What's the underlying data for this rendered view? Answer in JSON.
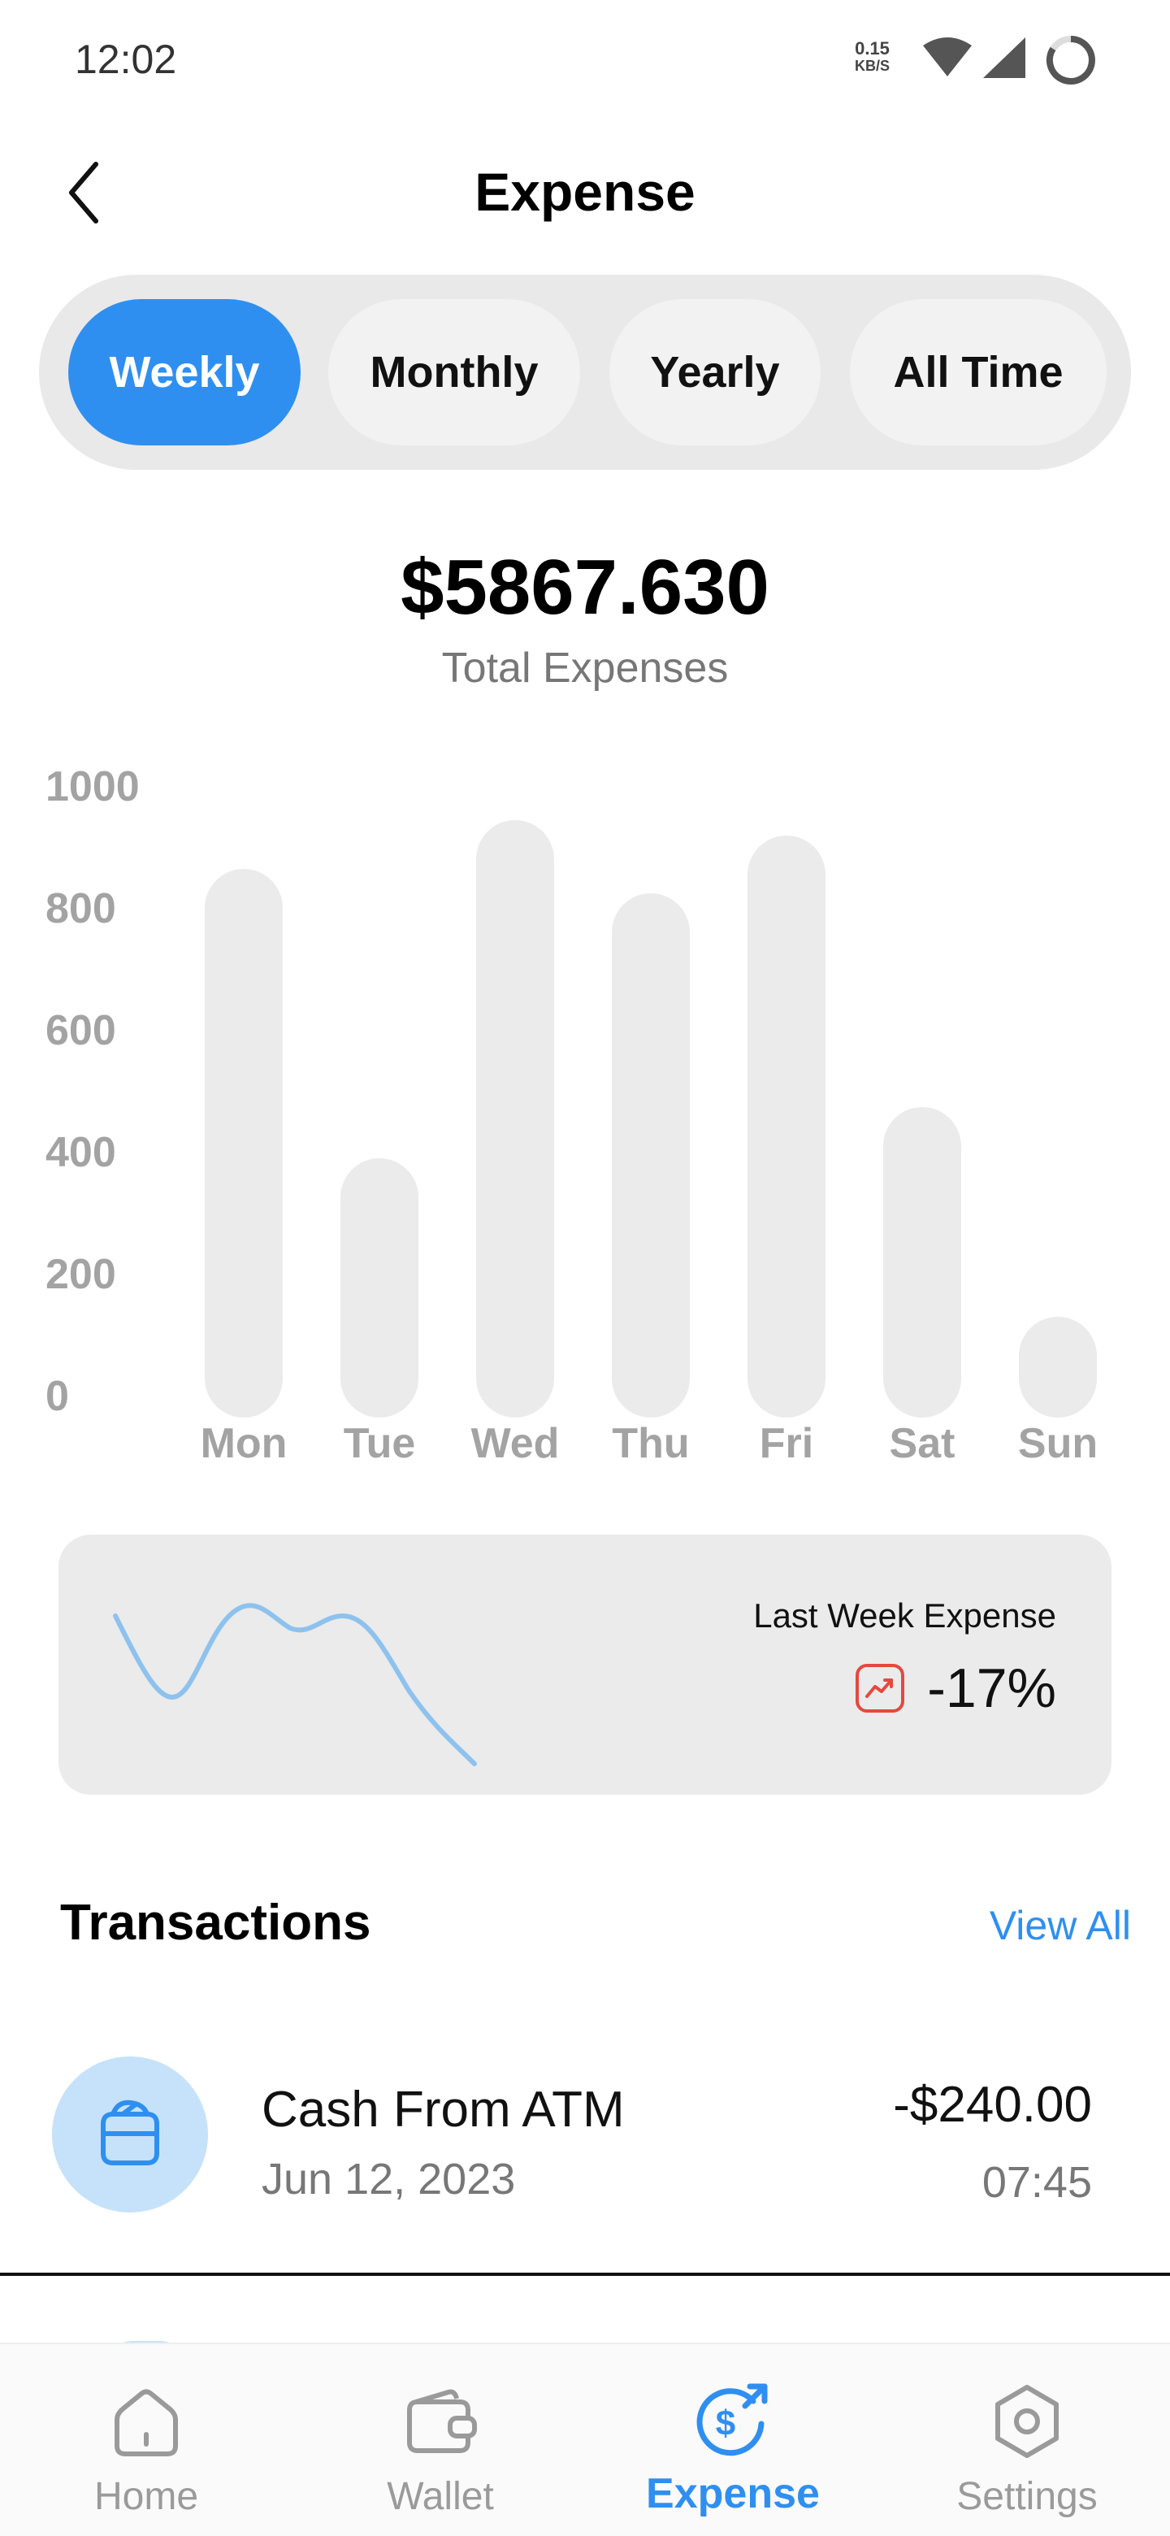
{
  "status_bar": {
    "time": "12:02",
    "network_speed_value": "0.15",
    "network_speed_unit": "KB/S"
  },
  "header": {
    "title": "Expense",
    "back_icon": "chevron-left-icon"
  },
  "period_tabs": [
    {
      "label": "Weekly",
      "active": true
    },
    {
      "label": "Monthly",
      "active": false
    },
    {
      "label": "Yearly",
      "active": false
    },
    {
      "label": "All Time",
      "active": false
    }
  ],
  "summary": {
    "total_amount": "$5867.630",
    "total_label": "Total Expenses"
  },
  "chart_data": {
    "type": "bar",
    "categories": [
      "Mon",
      "Tue",
      "Wed",
      "Thu",
      "Fri",
      "Sat",
      "Sun"
    ],
    "values": [
      900,
      425,
      980,
      860,
      955,
      510,
      165
    ],
    "yticks": [
      "1000",
      "800",
      "600",
      "400",
      "200",
      "0"
    ],
    "ylim": [
      0,
      1000
    ],
    "bar_color": "#ebebeb",
    "title": "",
    "xlabel": "",
    "ylabel": ""
  },
  "comparison": {
    "title": "Last Week Expense",
    "value": "-17%",
    "trend_icon": "trend-chart-icon",
    "trend_color": "#e5483f",
    "sparkline_color": "#8ec2ee"
  },
  "transactions": {
    "title": "Transactions",
    "view_all": "View All",
    "items": [
      {
        "name": "Cash From ATM",
        "date": "Jun 12, 2023",
        "amount": "-$240.00",
        "time": "07:45",
        "icon": "wallet-icon"
      }
    ]
  },
  "bottom_nav": [
    {
      "label": "Home",
      "icon": "home-icon",
      "active": false
    },
    {
      "label": "Wallet",
      "icon": "wallet-icon",
      "active": false
    },
    {
      "label": "Expense",
      "icon": "dollar-arrow-icon",
      "active": true
    },
    {
      "label": "Settings",
      "icon": "settings-icon",
      "active": false
    }
  ],
  "colors": {
    "accent": "#2f8ff0",
    "muted_text": "#777777",
    "axis_text": "#a3a3a3"
  }
}
